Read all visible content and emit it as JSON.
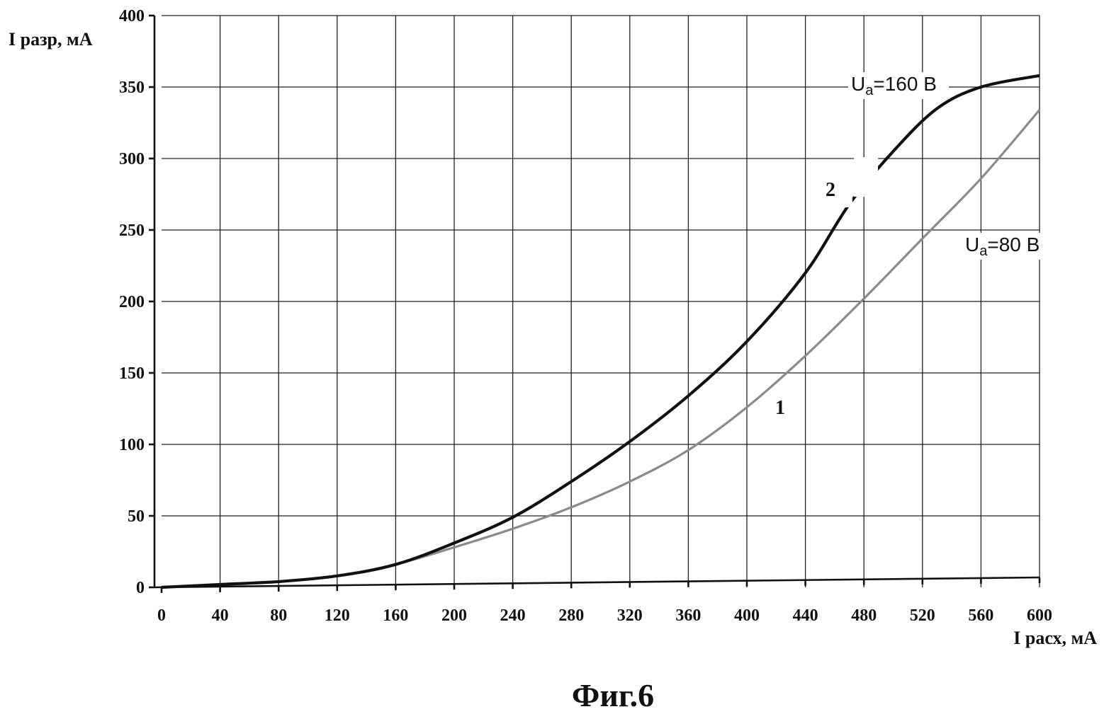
{
  "chart_data": {
    "type": "line",
    "xlabel": "I расх, мА",
    "ylabel": "I разр, мА",
    "xlim": [
      0,
      600
    ],
    "ylim": [
      0,
      400
    ],
    "xticks": [
      0,
      40,
      80,
      120,
      160,
      200,
      240,
      280,
      320,
      360,
      400,
      440,
      480,
      520,
      560,
      600
    ],
    "yticks": [
      0,
      50,
      100,
      150,
      200,
      250,
      300,
      350,
      400
    ],
    "grid": true,
    "series": [
      {
        "name": "1",
        "label_parts": [
          "U",
          "a",
          "=80 В"
        ],
        "color": "#8a8a8a",
        "x": [
          0,
          40,
          80,
          120,
          160,
          200,
          240,
          280,
          320,
          360,
          400,
          440,
          480,
          520,
          560,
          600
        ],
        "y": [
          0,
          2,
          4,
          8,
          16,
          28,
          41,
          56,
          74,
          96,
          126,
          162,
          202,
          244,
          286,
          334
        ]
      },
      {
        "name": "2",
        "label_parts": [
          "U",
          "a",
          "=160 В"
        ],
        "color": "#111111",
        "x": [
          0,
          40,
          80,
          120,
          160,
          200,
          240,
          280,
          320,
          360,
          400,
          440,
          470,
          500,
          530,
          560,
          600
        ],
        "y": [
          0,
          2,
          4,
          8,
          16,
          31,
          49,
          74,
          102,
          134,
          172,
          220,
          268,
          305,
          335,
          350,
          358
        ]
      }
    ]
  },
  "caption": "Фиг.6"
}
